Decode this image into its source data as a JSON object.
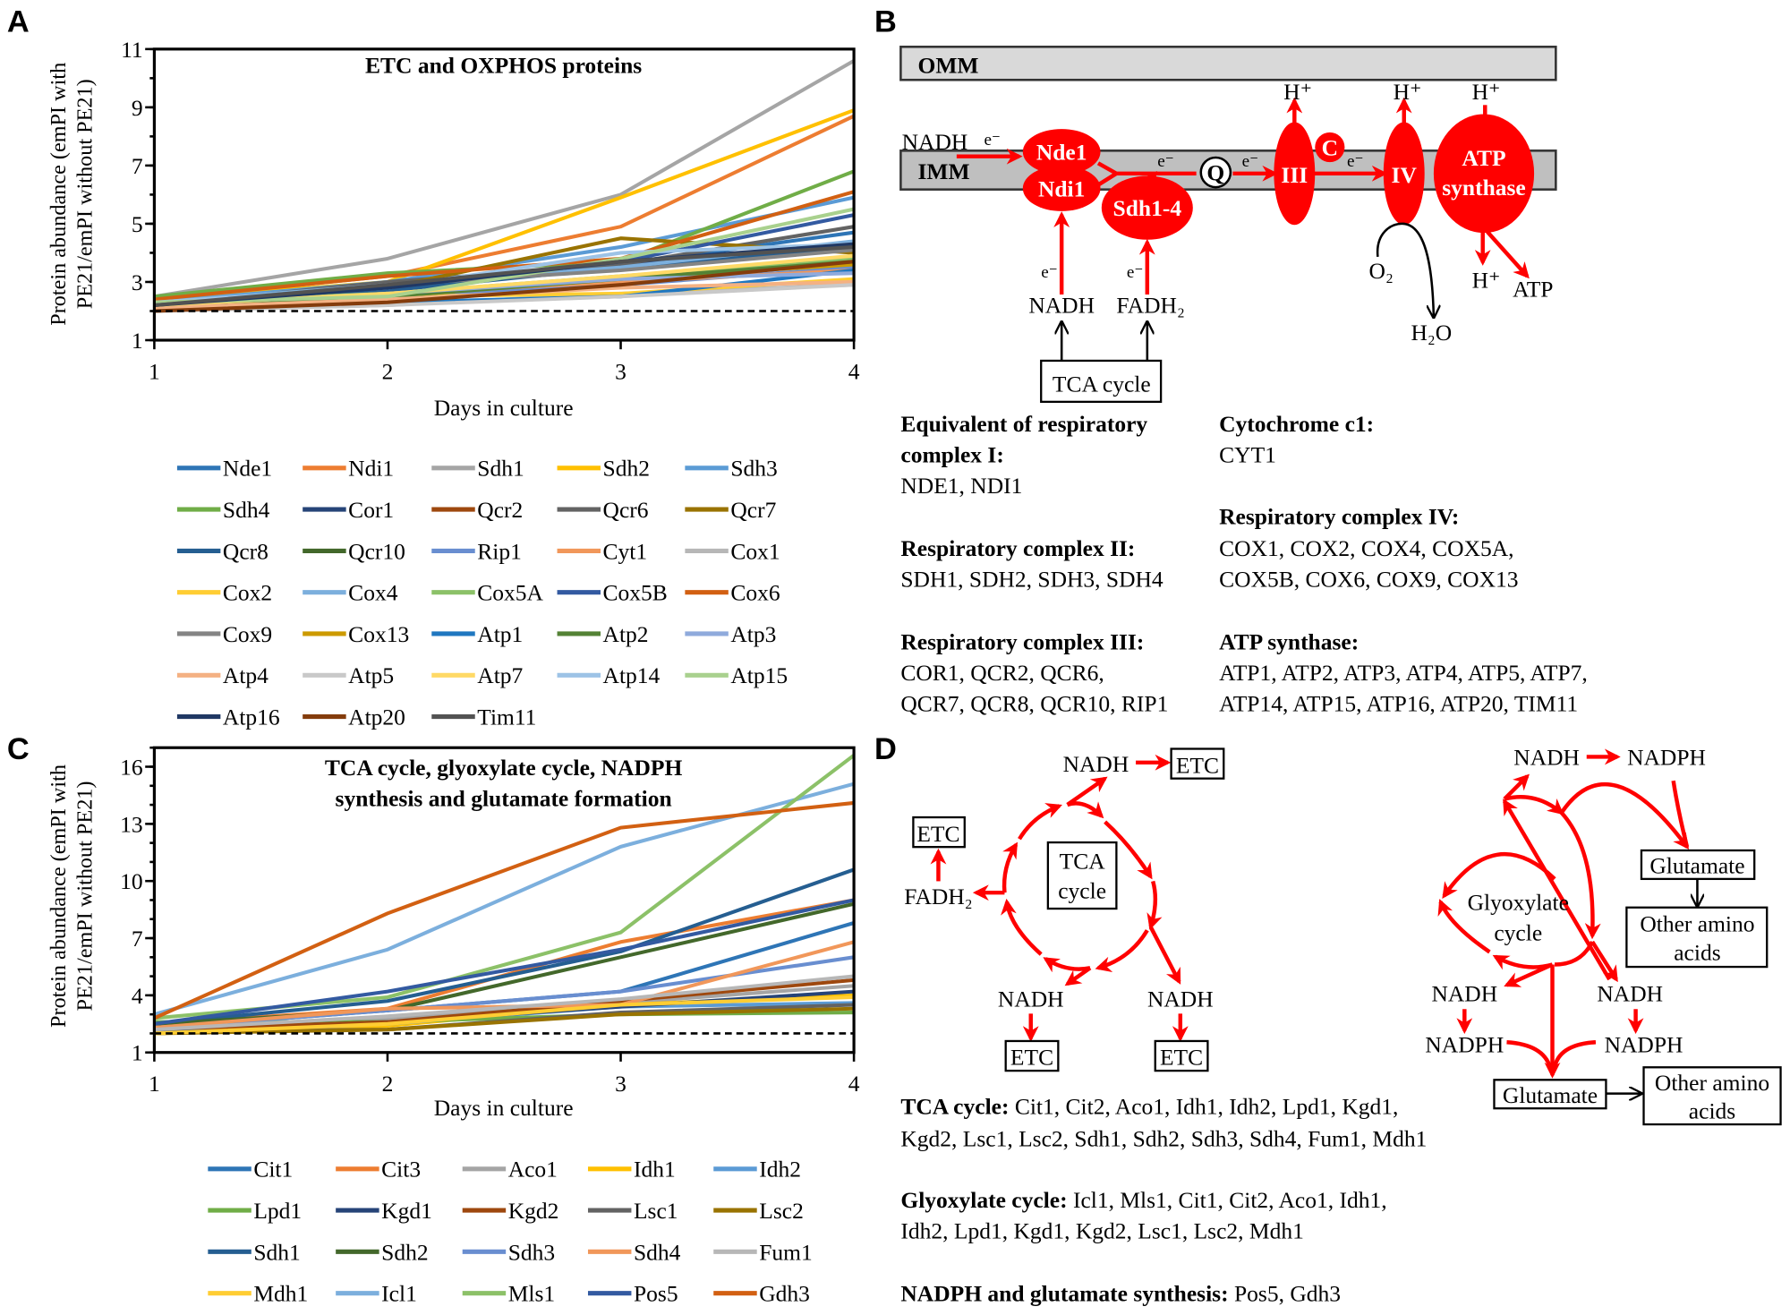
{
  "panels": {
    "a": "A",
    "b": "B",
    "c": "C",
    "d": "D"
  },
  "chart_data": [
    {
      "type": "line",
      "title": "ETC and OXPHOS proteins",
      "xlabel": "Days in culture",
      "ylabel_line1": "Protein abundance (emPI with",
      "ylabel_line2": "PE21/emPI without PE21)",
      "x": [
        1,
        2,
        3,
        4
      ],
      "xlim": [
        1,
        4
      ],
      "ylim": [
        1,
        11
      ],
      "yticks": [
        1,
        3,
        5,
        7,
        9,
        11
      ],
      "reference_line": 2,
      "grid": false,
      "legend": "bottom",
      "series": [
        {
          "name": "Nde1",
          "color": "#2E75B6",
          "values": [
            2.1,
            2.7,
            3.6,
            4.7
          ]
        },
        {
          "name": "Ndi1",
          "color": "#ED7D31",
          "values": [
            2.4,
            3.2,
            4.9,
            8.7
          ]
        },
        {
          "name": "Sdh1",
          "color": "#A5A5A5",
          "values": [
            2.5,
            3.8,
            6.0,
            10.6
          ]
        },
        {
          "name": "Sdh2",
          "color": "#FFC000",
          "values": [
            2.4,
            3.0,
            5.9,
            8.9
          ]
        },
        {
          "name": "Sdh3",
          "color": "#5B9BD5",
          "values": [
            2.3,
            3.0,
            4.2,
            5.9
          ]
        },
        {
          "name": "Sdh4",
          "color": "#70AD47",
          "values": [
            2.5,
            3.3,
            3.7,
            6.8
          ]
        },
        {
          "name": "Cor1",
          "color": "#264478",
          "values": [
            2.2,
            2.7,
            3.6,
            4.3
          ]
        },
        {
          "name": "Qcr2",
          "color": "#9E480E",
          "values": [
            2.1,
            2.4,
            3.0,
            3.8
          ]
        },
        {
          "name": "Qcr6",
          "color": "#636363",
          "values": [
            2.2,
            3.0,
            3.6,
            4.9
          ]
        },
        {
          "name": "Qcr7",
          "color": "#997300",
          "values": [
            2.2,
            2.8,
            4.5,
            4.0
          ]
        },
        {
          "name": "Qcr8",
          "color": "#255E91",
          "values": [
            2.2,
            2.7,
            3.5,
            4.2
          ]
        },
        {
          "name": "Qcr10",
          "color": "#43682B",
          "values": [
            2.1,
            2.5,
            3.0,
            3.9
          ]
        },
        {
          "name": "Rip1",
          "color": "#698ED0",
          "values": [
            2.1,
            2.5,
            2.9,
            3.5
          ]
        },
        {
          "name": "Cyt1",
          "color": "#F1975A",
          "values": [
            2.2,
            2.6,
            3.0,
            3.4
          ]
        },
        {
          "name": "Cox1",
          "color": "#B7B7B7",
          "values": [
            2.0,
            2.2,
            2.6,
            2.9
          ]
        },
        {
          "name": "Cox2",
          "color": "#FFCD33",
          "values": [
            2.2,
            2.5,
            2.6,
            3.1
          ]
        },
        {
          "name": "Cox4",
          "color": "#7CAFDD",
          "values": [
            2.3,
            2.9,
            3.5,
            4.4
          ]
        },
        {
          "name": "Cox5A",
          "color": "#8CC168",
          "values": [
            2.3,
            2.6,
            3.2,
            3.8
          ]
        },
        {
          "name": "Cox5B",
          "color": "#335AA1",
          "values": [
            2.2,
            2.8,
            3.7,
            5.3
          ]
        },
        {
          "name": "Cox6",
          "color": "#D26012",
          "values": [
            2.4,
            3.2,
            3.8,
            6.1
          ]
        },
        {
          "name": "Cox9",
          "color": "#848484",
          "values": [
            2.2,
            2.9,
            3.4,
            4.1
          ]
        },
        {
          "name": "Cox13",
          "color": "#CC9A00",
          "values": [
            2.1,
            2.5,
            3.1,
            3.6
          ]
        },
        {
          "name": "Atp1",
          "color": "#1F77C0",
          "values": [
            2.1,
            2.3,
            2.5,
            3.4
          ]
        },
        {
          "name": "Atp2",
          "color": "#548235",
          "values": [
            2.2,
            2.5,
            3.1,
            3.7
          ]
        },
        {
          "name": "Atp3",
          "color": "#8FAADC",
          "values": [
            2.2,
            2.6,
            3.1,
            3.3
          ]
        },
        {
          "name": "Atp4",
          "color": "#F4B183",
          "values": [
            2.1,
            2.4,
            2.8,
            3.0
          ]
        },
        {
          "name": "Atp5",
          "color": "#C9C9C9",
          "values": [
            2.0,
            2.2,
            2.5,
            2.9
          ]
        },
        {
          "name": "Atp7",
          "color": "#FFD966",
          "values": [
            2.2,
            2.6,
            3.2,
            3.9
          ]
        },
        {
          "name": "Atp14",
          "color": "#9DC3E6",
          "values": [
            2.3,
            2.8,
            4.0,
            4.3
          ]
        },
        {
          "name": "Atp15",
          "color": "#A9D18E",
          "values": [
            2.3,
            2.5,
            3.8,
            5.5
          ]
        },
        {
          "name": "Atp16",
          "color": "#203864",
          "values": [
            2.2,
            2.8,
            3.7,
            4.3
          ]
        },
        {
          "name": "Atp20",
          "color": "#843C0C",
          "values": [
            2.0,
            2.3,
            2.9,
            3.7
          ]
        },
        {
          "name": "Tim11",
          "color": "#525252",
          "values": [
            2.2,
            2.9,
            3.7,
            4.2
          ]
        }
      ]
    },
    {
      "type": "line",
      "title_line1": "TCA cycle, glyoxylate cycle, NADPH",
      "title_line2": "synthesis and glutamate formation",
      "xlabel": "Days in culture",
      "ylabel_line1": "Protein abundance (emPI with",
      "ylabel_line2": "PE21/emPI without PE21)",
      "x": [
        1,
        2,
        3,
        4
      ],
      "xlim": [
        1,
        4
      ],
      "ylim": [
        1,
        17
      ],
      "yticks": [
        1,
        4,
        7,
        10,
        13,
        16
      ],
      "reference_line": 2,
      "grid": false,
      "legend": "bottom",
      "series": [
        {
          "name": "Cit1",
          "color": "#2E75B6",
          "values": [
            2.3,
            3.2,
            4.2,
            7.8
          ]
        },
        {
          "name": "Cit3",
          "color": "#ED7D31",
          "values": [
            2.5,
            3.3,
            6.8,
            9.0
          ]
        },
        {
          "name": "Aco1",
          "color": "#A5A5A5",
          "values": [
            2.1,
            2.8,
            3.6,
            4.5
          ]
        },
        {
          "name": "Idh1",
          "color": "#FFC000",
          "values": [
            2.0,
            2.4,
            3.5,
            4.0
          ]
        },
        {
          "name": "Idh2",
          "color": "#5B9BD5",
          "values": [
            2.2,
            2.5,
            3.4,
            3.6
          ]
        },
        {
          "name": "Lpd1",
          "color": "#70AD47",
          "values": [
            2.6,
            2.6,
            3.0,
            3.1
          ]
        },
        {
          "name": "Kgd1",
          "color": "#264478",
          "values": [
            2.2,
            2.6,
            3.4,
            4.2
          ]
        },
        {
          "name": "Kgd2",
          "color": "#9E480E",
          "values": [
            2.2,
            2.6,
            3.7,
            4.8
          ]
        },
        {
          "name": "Lsc1",
          "color": "#636363",
          "values": [
            2.1,
            2.2,
            3.1,
            3.5
          ]
        },
        {
          "name": "Lsc2",
          "color": "#997300",
          "values": [
            2.0,
            2.2,
            3.0,
            3.3
          ]
        },
        {
          "name": "Sdh1",
          "color": "#255E91",
          "values": [
            2.5,
            3.7,
            6.3,
            10.6
          ]
        },
        {
          "name": "Sdh2",
          "color": "#43682B",
          "values": [
            2.5,
            3.2,
            6.0,
            8.8
          ]
        },
        {
          "name": "Sdh3",
          "color": "#698ED0",
          "values": [
            2.3,
            3.2,
            4.2,
            6.0
          ]
        },
        {
          "name": "Sdh4",
          "color": "#F1975A",
          "values": [
            2.3,
            3.3,
            3.5,
            6.8
          ]
        },
        {
          "name": "Fum1",
          "color": "#B7B7B7",
          "values": [
            2.2,
            2.9,
            3.8,
            5.0
          ]
        },
        {
          "name": "Mdh1",
          "color": "#FFCD33",
          "values": [
            2.0,
            2.5,
            3.5,
            3.9
          ]
        },
        {
          "name": "Icl1",
          "color": "#7CAFDD",
          "values": [
            3.0,
            6.4,
            11.8,
            15.1
          ]
        },
        {
          "name": "Mls1",
          "color": "#8CC168",
          "values": [
            2.8,
            3.9,
            7.3,
            16.6
          ]
        },
        {
          "name": "Pos5",
          "color": "#335AA1",
          "values": [
            2.5,
            4.2,
            6.4,
            9.0
          ]
        },
        {
          "name": "Gdh3",
          "color": "#D26012",
          "values": [
            2.8,
            8.3,
            12.8,
            14.1
          ]
        }
      ]
    }
  ],
  "diagram_b": {
    "omm": "OMM",
    "imm": "IMM",
    "nadh": "NADH",
    "fadh2": "FADH₂",
    "electron": "e⁻",
    "nde1": "Nde1",
    "ndi1": "Ndi1",
    "sdh": "Sdh1-4",
    "q": "Q",
    "c": "C",
    "complex3": "III",
    "complex4": "IV",
    "atp_line1": "ATP",
    "atp_line2": "synthase",
    "proton": "H⁺",
    "o2": "O₂",
    "h2o": "H₂O",
    "atp": "ATP",
    "tca": "TCA cycle",
    "text": {
      "c1_head1": "Equivalent of respiratory",
      "c1_head2": "complex I:",
      "c1_list": "NDE1, NDI1",
      "c2_head": "Respiratory complex II:",
      "c2_list": "SDH1, SDH2, SDH3, SDH4",
      "c3_head": "Respiratory complex III:",
      "c3_list1": "COR1, QCR2, QCR6,",
      "c3_list2": "QCR7, QCR8, QCR10, RIP1",
      "cyt_head": "Cytochrome c1:",
      "cyt_list": "CYT1",
      "c4_head": "Respiratory complex IV:",
      "c4_list1": "COX1, COX2, COX4, COX5A,",
      "c4_list2": "COX5B, COX6, COX9, COX13",
      "atp_head": "ATP synthase:",
      "atp_list1": "ATP1, ATP2, ATP3, ATP4, ATP5, ATP7,",
      "atp_list2": "ATP14, ATP15, ATP16, ATP20, TIM11"
    }
  },
  "diagram_d": {
    "nadh": "NADH",
    "nadph": "NADPH",
    "etc": "ETC",
    "fadh2": "FADH₂",
    "tca_line1": "TCA",
    "tca_line2": "cycle",
    "glyox_line1": "Glyoxylate",
    "glyox_line2": "cycle",
    "glutamate": "Glutamate",
    "other_line1": "Other amino",
    "other_line2": "acids",
    "text": {
      "tca_head": "TCA cycle:",
      "tca_list1": " Cit1, Cit2, Aco1, Idh1, Idh2, Lpd1, Kgd1,",
      "tca_list2": "Kgd2, Lsc1, Lsc2, Sdh1, Sdh2, Sdh3, Sdh4, Fum1, Mdh1",
      "gly_head": "Glyoxylate cycle:",
      "gly_list1": " Icl1, Mls1, Cit1, Cit2, Aco1, Idh1,",
      "gly_list2": "Idh2, Lpd1, Kgd1, Kgd2, Lsc1, Lsc2, Mdh1",
      "nadph_head": "NADPH and glutamate synthesis:",
      "nadph_list": " Pos5, Gdh3"
    }
  }
}
